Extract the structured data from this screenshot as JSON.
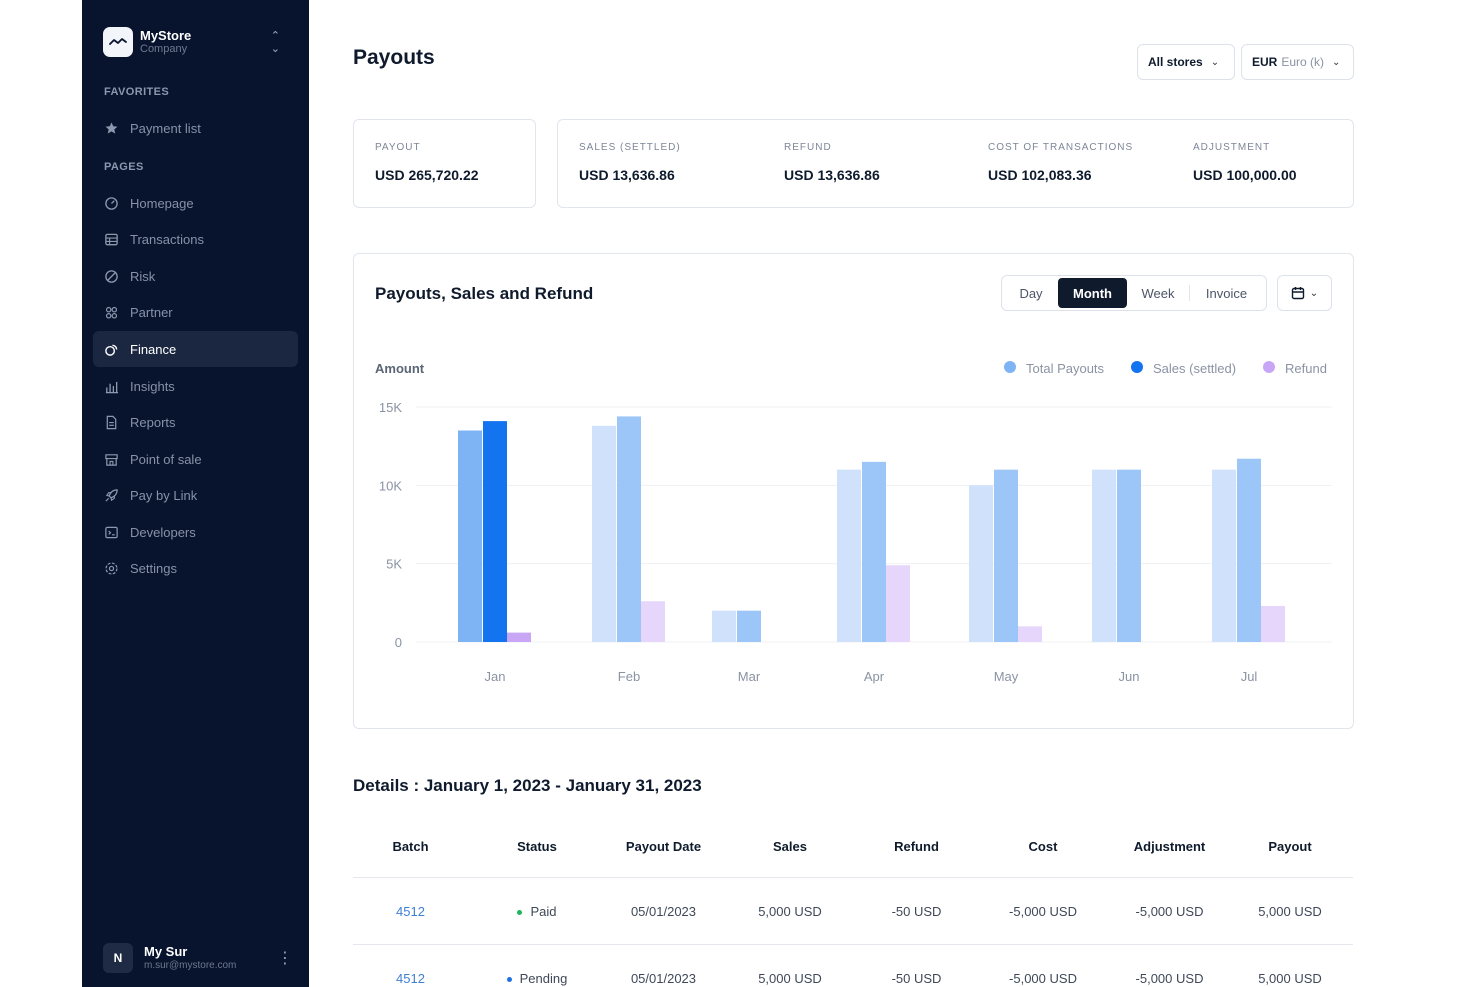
{
  "brand": {
    "name": "MyStore",
    "subtitle": "Company"
  },
  "sidebar": {
    "favorites_label": "FAVORITES",
    "favorites": [
      {
        "label": "Payment list",
        "icon": "star-icon"
      }
    ],
    "pages_label": "PAGES",
    "items": [
      {
        "label": "Homepage",
        "icon": "gauge-icon"
      },
      {
        "label": "Transactions",
        "icon": "table-icon"
      },
      {
        "label": "Risk",
        "icon": "shield-icon"
      },
      {
        "label": "Partner",
        "icon": "users-icon"
      },
      {
        "label": "Finance",
        "icon": "coins-icon",
        "active": true
      },
      {
        "label": "Insights",
        "icon": "bar-chart-icon"
      },
      {
        "label": "Reports",
        "icon": "document-icon"
      },
      {
        "label": "Point of sale",
        "icon": "store-icon"
      },
      {
        "label": "Pay by Link",
        "icon": "rocket-icon"
      },
      {
        "label": "Developers",
        "icon": "terminal-icon"
      },
      {
        "label": "Settings",
        "icon": "gear-icon"
      }
    ]
  },
  "user": {
    "initial": "N",
    "name": "My Sur",
    "email": "m.sur@mystore.com"
  },
  "header": {
    "title": "Payouts",
    "store_select": "All stores",
    "currency_code": "EUR",
    "currency_name": "Euro (k)"
  },
  "stats": {
    "payout": {
      "label": "PAYOUT",
      "value": "USD 265,720.22"
    },
    "items": [
      {
        "label": "SALES (SETTLED)",
        "value": "USD 13,636.86"
      },
      {
        "label": "REFUND",
        "value": "USD 13,636.86"
      },
      {
        "label": "COST OF TRANSACTIONS",
        "value": "USD 102,083.36"
      },
      {
        "label": "ADJUSTMENT",
        "value": "USD 100,000.00"
      }
    ]
  },
  "chart_panel": {
    "title": "Payouts, Sales and Refund",
    "periods": [
      "Day",
      "Month",
      "Week",
      "Invoice"
    ],
    "active_period": "Month"
  },
  "chart_data": {
    "type": "bar",
    "ylabel": "Amount",
    "categories": [
      "Jan",
      "Feb",
      "Mar",
      "Apr",
      "May",
      "Jun",
      "Jul"
    ],
    "yticks": [
      0,
      5000,
      10000,
      15000
    ],
    "ytick_labels": [
      "0",
      "5K",
      "10K",
      "15K"
    ],
    "ylim": [
      0,
      15000
    ],
    "grid": true,
    "legend_position": "top-right",
    "series": [
      {
        "name": "Total Payouts",
        "color": "#7fb4f4",
        "values": [
          13500,
          13800,
          2000,
          11000,
          10000,
          11000,
          11000
        ]
      },
      {
        "name": "Sales (settled)",
        "color": "#1473ee",
        "values": [
          14100,
          14400,
          2000,
          11500,
          11000,
          11000,
          11700
        ]
      },
      {
        "name": "Refund",
        "color": "#c9a6f5",
        "values": [
          600,
          2600,
          0,
          4900,
          1000,
          0,
          2300
        ]
      }
    ]
  },
  "details": {
    "title": "Details : January 1, 2023 - January 31, 2023",
    "columns": [
      "Batch",
      "Status",
      "Payout Date",
      "Sales",
      "Refund",
      "Cost",
      "Adjustment",
      "Payout"
    ],
    "rows": [
      {
        "batch": "4512",
        "status": "Paid",
        "status_color": "#22b35e",
        "date": "05/01/2023",
        "sales": "5,000 USD",
        "refund": "-50 USD",
        "cost": "-5,000 USD",
        "adjustment": "-5,000 USD",
        "payout": "5,000 USD"
      },
      {
        "batch": "4512",
        "status": "Pending",
        "status_color": "#1f6fe5",
        "date": "05/01/2023",
        "sales": "5,000 USD",
        "refund": "-50 USD",
        "cost": "-5,000 USD",
        "adjustment": "-5,000 USD",
        "payout": "5,000 USD"
      }
    ]
  }
}
